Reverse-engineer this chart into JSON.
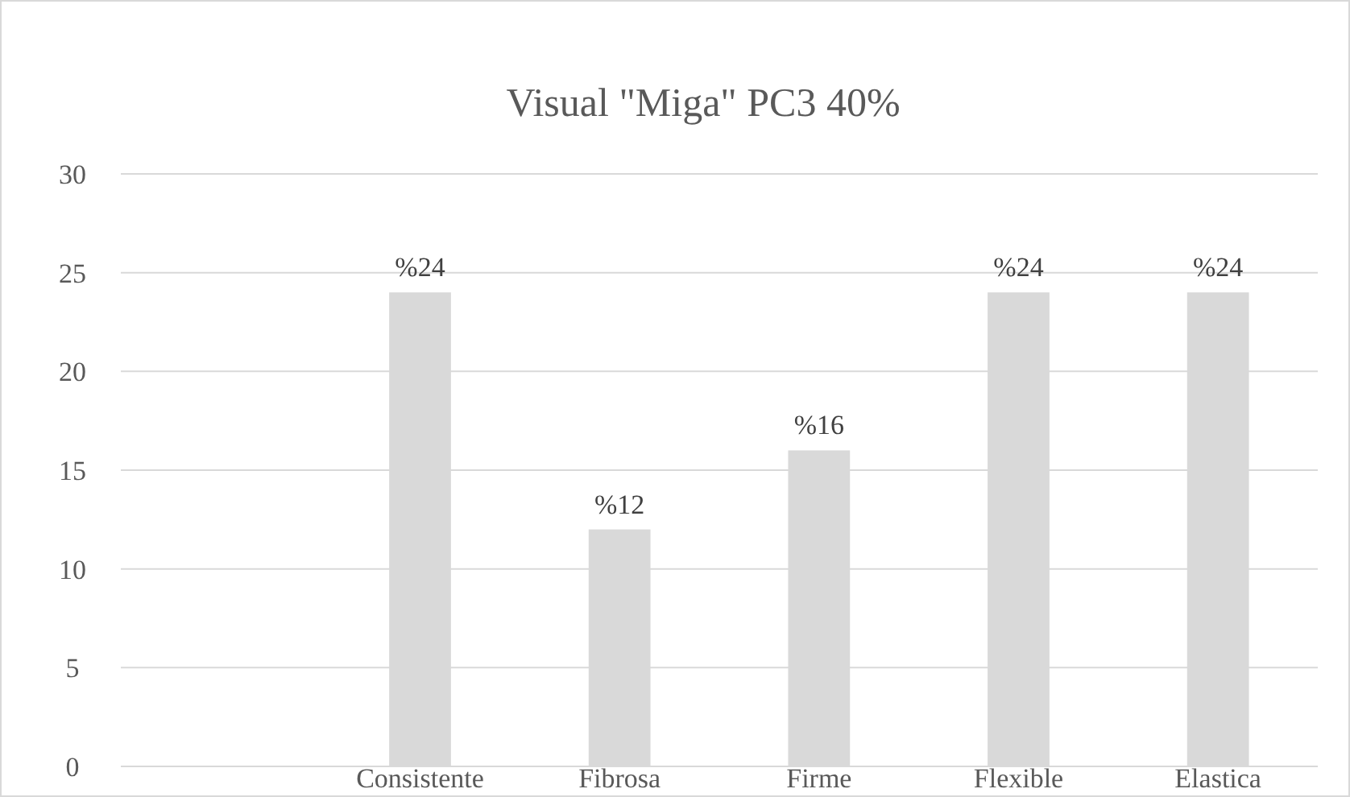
{
  "chart_data": {
    "type": "bar",
    "title": "Visual \"Miga\" PC3 40%",
    "categories": [
      null,
      "Consistente",
      "Fibrosa",
      "Firme",
      "Flexible",
      "Elastica"
    ],
    "values": [
      null,
      24,
      12,
      16,
      24,
      24
    ],
    "value_labels": [
      null,
      "%24",
      "%12",
      "%16",
      "%24",
      "%24"
    ],
    "color": "#d9d9d9",
    "ylim": [
      0,
      30
    ],
    "yticks": [
      0,
      5,
      10,
      15,
      20,
      25,
      30
    ],
    "grid": "y"
  }
}
